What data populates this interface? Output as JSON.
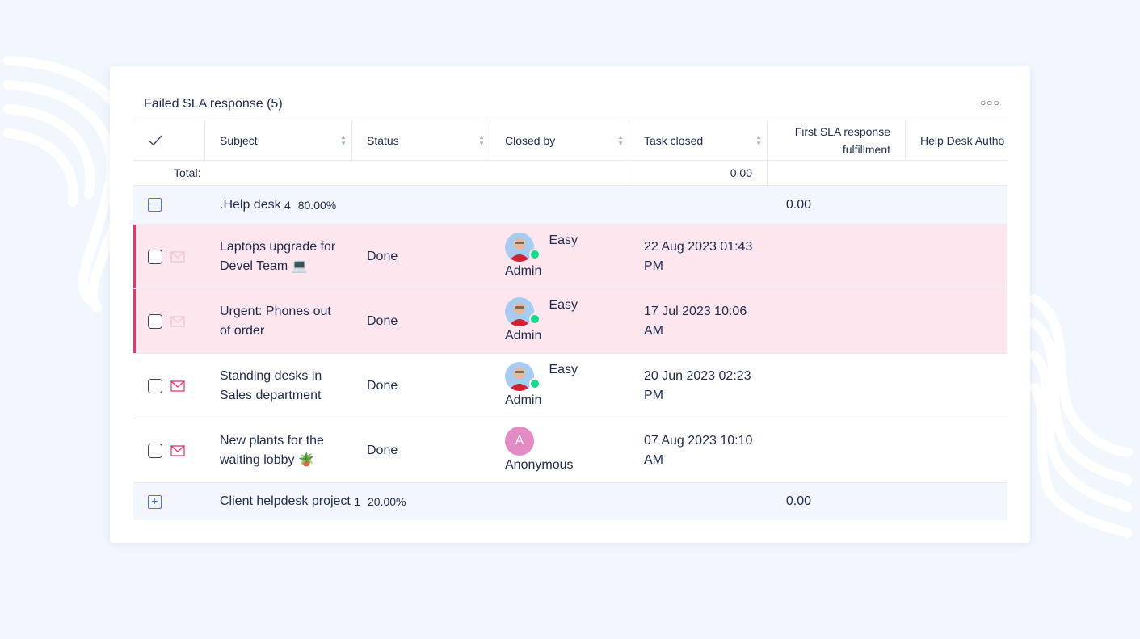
{
  "widget": {
    "title": "Failed SLA response (5)",
    "more_icon": "ellipsis-icon"
  },
  "columns": [
    "Subject",
    "Status",
    "Closed by",
    "Task closed",
    "First SLA response fulfillment",
    "Help Desk Autho"
  ],
  "total": {
    "label": "Total:",
    "sla": "0.00"
  },
  "groups": [
    {
      "name": ".Help desk",
      "count": "4",
      "percent": "80.00%",
      "sla": "0.00",
      "expanded": true
    },
    {
      "name": "Client helpdesk project",
      "count": "1",
      "percent": "20.00%",
      "sla": "0.00",
      "expanded": false
    }
  ],
  "rows": [
    {
      "subject": "Laptops upgrade for Devel Team 💻",
      "status": "Done",
      "closed_by_first": "Easy",
      "closed_by_last": "Admin",
      "closed": "22 Aug 2023 01:43 PM",
      "failed": true
    },
    {
      "subject": "Urgent: Phones out of order",
      "status": "Done",
      "closed_by_first": "Easy",
      "closed_by_last": "Admin",
      "closed": "17 Jul 2023 10:06 AM",
      "failed": true
    },
    {
      "subject": "Standing desks in Sales department",
      "status": "Done",
      "closed_by_first": "Easy",
      "closed_by_last": "Admin",
      "closed": "20 Jun 2023 02:23 PM",
      "failed": false
    },
    {
      "subject": "New plants for the waiting lobby 🪴",
      "status": "Done",
      "closed_by_first": "",
      "closed_by_last": "Anonymous",
      "avatar_letter": "A",
      "closed": "07 Aug 2023 10:10 AM",
      "failed": false
    }
  ],
  "colors": {
    "accent": "#3d7be0",
    "failed_bg": "#fde6ee",
    "failed_bar": "#e8336d",
    "online": "#16d98e"
  }
}
